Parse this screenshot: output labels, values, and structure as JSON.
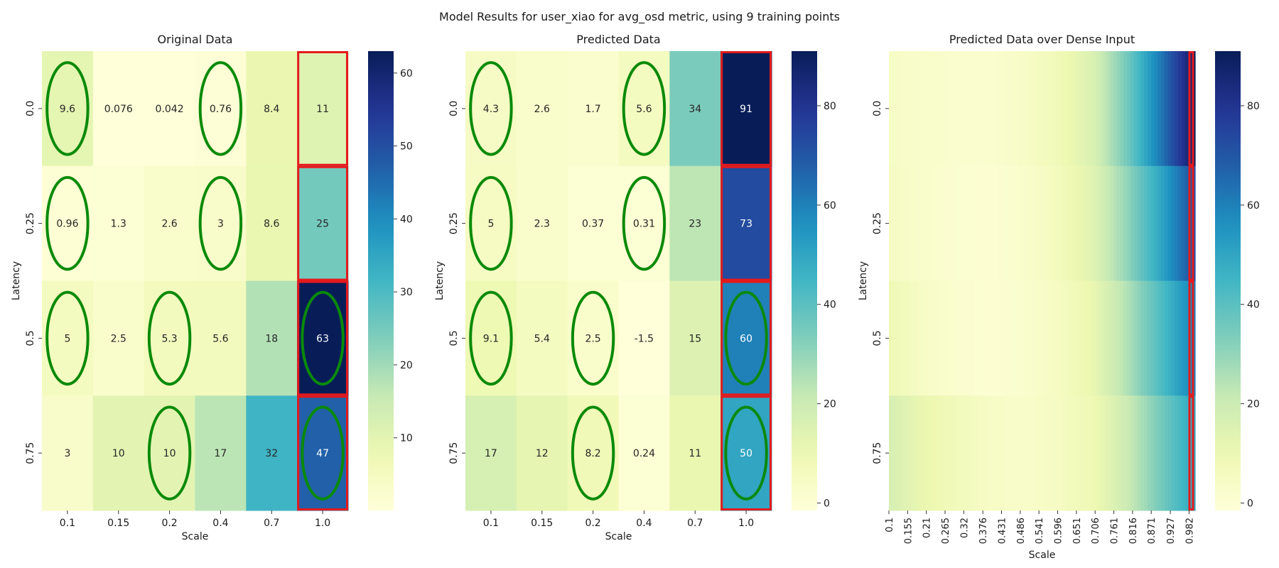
{
  "suptitle": "Model Results for user_xiao for avg_osd metric, using 9 training points",
  "chart_data": [
    {
      "type": "heatmap",
      "title": "Original Data",
      "xlabel": "Scale",
      "ylabel": "Latency",
      "x_categories": [
        "0.1",
        "0.15",
        "0.2",
        "0.4",
        "0.7",
        "1.0"
      ],
      "y_categories": [
        "0.0",
        "0.25",
        "0.5",
        "0.75"
      ],
      "values": [
        [
          9.6,
          0.076,
          0.042,
          0.76,
          8.4,
          11
        ],
        [
          0.96,
          1.3,
          2.6,
          3,
          8.6,
          25
        ],
        [
          5,
          2.5,
          5.3,
          5.6,
          18,
          63
        ],
        [
          3,
          10,
          10,
          17,
          32,
          47
        ]
      ],
      "annotations": [
        [
          "9.6",
          "0.076",
          "0.042",
          "0.76",
          "8.4",
          "11"
        ],
        [
          "0.96",
          "1.3",
          "2.6",
          "3",
          "8.6",
          "25"
        ],
        [
          "5",
          "2.5",
          "5.3",
          "5.6",
          "18",
          "63"
        ],
        [
          "3",
          "10",
          "10",
          "17",
          "32",
          "47"
        ]
      ],
      "colorbar": {
        "vmin": 0.04,
        "vmax": 63,
        "ticks": [
          10,
          20,
          30,
          40,
          50,
          60
        ],
        "colormap": "YlGnBu"
      },
      "training_points": [
        [
          0,
          0
        ],
        [
          0,
          3
        ],
        [
          1,
          0
        ],
        [
          1,
          3
        ],
        [
          2,
          0
        ],
        [
          2,
          2
        ],
        [
          2,
          5
        ],
        [
          3,
          2
        ],
        [
          3,
          5
        ]
      ],
      "highlight_column": 5,
      "highlight_color": "#e41a1c",
      "circle_color": "#0a8a0a"
    },
    {
      "type": "heatmap",
      "title": "Predicted Data",
      "xlabel": "Scale",
      "ylabel": "Latency",
      "x_categories": [
        "0.1",
        "0.15",
        "0.2",
        "0.4",
        "0.7",
        "1.0"
      ],
      "y_categories": [
        "0.0",
        "0.25",
        "0.5",
        "0.75"
      ],
      "values": [
        [
          4.3,
          2.6,
          1.7,
          5.6,
          34,
          91
        ],
        [
          5,
          2.3,
          0.37,
          0.31,
          23,
          73
        ],
        [
          9.1,
          5.4,
          2.5,
          -1.5,
          15,
          60
        ],
        [
          17,
          12,
          8.2,
          0.24,
          11,
          50
        ]
      ],
      "annotations": [
        [
          "4.3",
          "2.6",
          "1.7",
          "5.6",
          "34",
          "91"
        ],
        [
          "5",
          "2.3",
          "0.37",
          "0.31",
          "23",
          "73"
        ],
        [
          "9.1",
          "5.4",
          "2.5",
          "-1.5",
          "15",
          "60"
        ],
        [
          "17",
          "12",
          "8.2",
          "0.24",
          "11",
          "50"
        ]
      ],
      "colorbar": {
        "vmin": -1.5,
        "vmax": 91,
        "ticks": [
          0,
          20,
          40,
          60,
          80
        ],
        "colormap": "YlGnBu"
      },
      "training_points": [
        [
          0,
          0
        ],
        [
          0,
          3
        ],
        [
          1,
          0
        ],
        [
          1,
          3
        ],
        [
          2,
          0
        ],
        [
          2,
          2
        ],
        [
          2,
          5
        ],
        [
          3,
          2
        ],
        [
          3,
          5
        ]
      ],
      "highlight_column": 5,
      "highlight_color": "#e41a1c",
      "circle_color": "#0a8a0a"
    },
    {
      "type": "heatmap",
      "title": "Predicted Data over Dense Input",
      "xlabel": "Scale",
      "ylabel": "Latency",
      "x_tick_labels": [
        "0.1",
        "0.155",
        "0.21",
        "0.265",
        "0.32",
        "0.376",
        "0.431",
        "0.486",
        "0.541",
        "0.596",
        "0.651",
        "0.706",
        "0.761",
        "0.816",
        "0.871",
        "0.927",
        "0.982"
      ],
      "x_range": [
        0.1,
        1.0
      ],
      "y_categories": [
        "0.0",
        "0.25",
        "0.5",
        "0.75"
      ],
      "row_profiles": [
        {
          "x": [
            0.1,
            0.2,
            0.3,
            0.4,
            0.5,
            0.6,
            0.7,
            0.8,
            0.9,
            1.0
          ],
          "y": [
            4.3,
            2.5,
            1.8,
            1.7,
            4.0,
            8.0,
            16,
            35,
            62,
            91
          ]
        },
        {
          "x": [
            0.1,
            0.2,
            0.3,
            0.4,
            0.5,
            0.6,
            0.7,
            0.8,
            0.9,
            1.0
          ],
          "y": [
            5.0,
            2.5,
            1.0,
            0.5,
            2.5,
            6.5,
            14,
            30,
            50,
            73
          ]
        },
        {
          "x": [
            0.1,
            0.2,
            0.3,
            0.4,
            0.5,
            0.6,
            0.7,
            0.8,
            0.9,
            1.0
          ],
          "y": [
            9.1,
            4.0,
            1.5,
            0.5,
            2.0,
            5.0,
            11,
            25,
            42,
            60
          ]
        },
        {
          "x": [
            0.1,
            0.2,
            0.3,
            0.4,
            0.5,
            0.6,
            0.7,
            0.8,
            0.9,
            1.0
          ],
          "y": [
            17,
            11,
            7.0,
            4.0,
            3.0,
            5.0,
            9.0,
            20,
            35,
            50
          ]
        }
      ],
      "colorbar": {
        "vmin": -1.5,
        "vmax": 91,
        "ticks": [
          0,
          20,
          40,
          60,
          80
        ],
        "colormap": "YlGnBu"
      },
      "highlight_x": 1.0,
      "highlight_color": "#e41a1c"
    }
  ]
}
